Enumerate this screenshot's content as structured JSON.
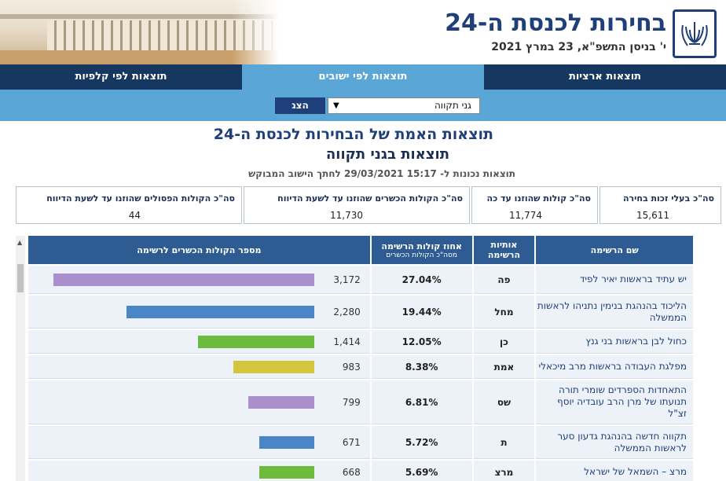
{
  "header": {
    "title": "בחירות לכנסת ה-24",
    "date": "י' בניסן התשפ\"א, 23 במרץ 2021",
    "emblem_label": "ישראל"
  },
  "nav": {
    "tabs": [
      {
        "label": "תוצאות ארציות",
        "active": false
      },
      {
        "label": "תוצאות לפי ישובים",
        "active": true
      },
      {
        "label": "תוצאות לפי קלפיות",
        "active": false
      }
    ]
  },
  "filter": {
    "selected_value": "גני תקווה",
    "button_label": "הצג"
  },
  "results": {
    "heading": "תוצאות האמת של הבחירות לכנסת ה-24",
    "subheading": "תוצאות בגני תקווה",
    "updated_prefix": "תוצאות נכונות ל-",
    "updated_value": "29/03/2021  15:17",
    "updated_suffix": "לחתך הישוב המבוקש"
  },
  "summary": {
    "eligible_label": "סה\"כ בעלי זכות בחירה",
    "eligible_value": "15,611",
    "counted_label": "סה\"כ קולות שהוזנו עד כה",
    "counted_value": "11,774",
    "valid_label": "סה\"כ הקולות הכשרים שהוזנו עד לשעת הדיווח",
    "valid_value": "11,730",
    "invalid_label": "סה\"כ הקולות הפסולים שהוזנו עד לשעת הדיווח",
    "invalid_value": "44"
  },
  "table": {
    "headers": {
      "list_name": "שם הרשימה",
      "letters": "אותיות הרשימה",
      "percent": "אחוז קולות הרשימה",
      "percent_sub": "מסה\"כ הקולות הכשרים",
      "votes": "מספר הקולות הכשרים לרשימה"
    },
    "colors": {
      "purple": "#a98fcb",
      "blue": "#4a86c5",
      "green": "#6cbb3c",
      "yellow": "#d3c53c"
    },
    "max_votes": 3172,
    "rows": [
      {
        "name": "יש עתיד בראשות יאיר לפיד",
        "letters": "פה",
        "percent": "27.04%",
        "votes": "3,172",
        "votes_num": 3172,
        "color": "#a98fcb"
      },
      {
        "name": "הליכוד בהנהגת בנימין נתניהו לראשות הממשלה",
        "letters": "מחל",
        "percent": "19.44%",
        "votes": "2,280",
        "votes_num": 2280,
        "color": "#4a86c5"
      },
      {
        "name": "כחול לבן בראשות בני גנץ",
        "letters": "כן",
        "percent": "12.05%",
        "votes": "1,414",
        "votes_num": 1414,
        "color": "#6cbb3c"
      },
      {
        "name": "מפלגת העבודה בראשות מרב מיכאלי",
        "letters": "אמת",
        "percent": "8.38%",
        "votes": "983",
        "votes_num": 983,
        "color": "#d3c53c"
      },
      {
        "name": "התאחדות הספרדים שומרי תורה תנועתו של מרן הרב עובדיה יוסף זצ\"ל",
        "letters": "שס",
        "percent": "6.81%",
        "votes": "799",
        "votes_num": 799,
        "color": "#a98fcb"
      },
      {
        "name": "תקווה חדשה בהנהגת גדעון סער לראשות הממשלה",
        "letters": "ת",
        "percent": "5.72%",
        "votes": "671",
        "votes_num": 671,
        "color": "#4a86c5"
      },
      {
        "name": "מרצ – השמאל של ישראל",
        "letters": "מרצ",
        "percent": "5.69%",
        "votes": "668",
        "votes_num": 668,
        "color": "#6cbb3c"
      }
    ]
  }
}
